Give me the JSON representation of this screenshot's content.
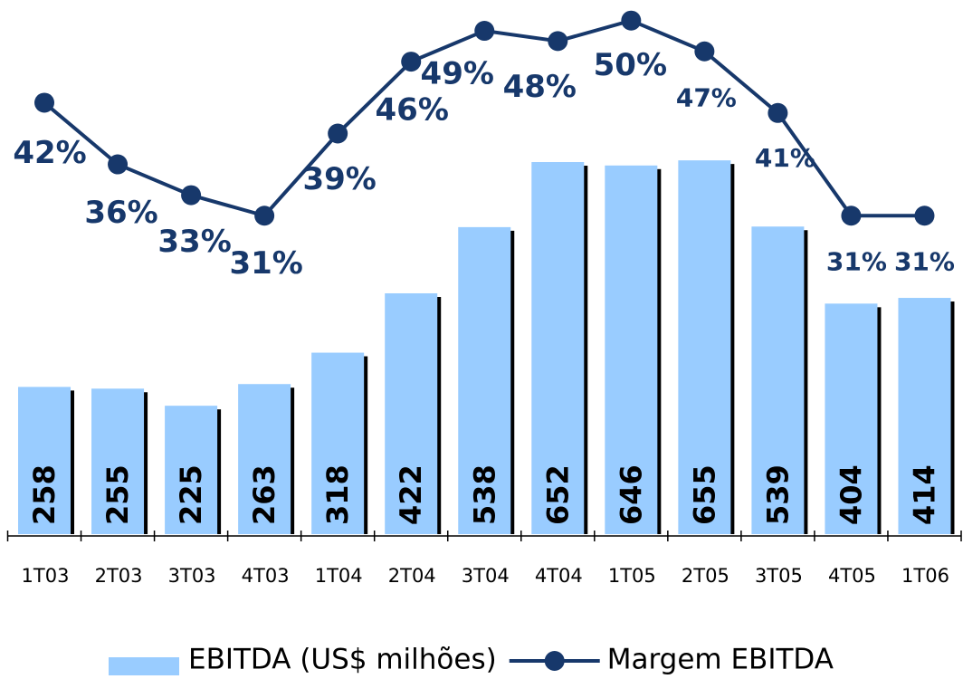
{
  "chart_data": {
    "type": "bar_line",
    "categories": [
      "1T03",
      "2T03",
      "3T03",
      "4T03",
      "1T04",
      "2T04",
      "3T04",
      "4T04",
      "1T05",
      "2T05",
      "3T05",
      "4T05",
      "1T06"
    ],
    "series": [
      {
        "name": "EBITDA (US$ milhões)",
        "color": "#99ccff",
        "type": "bar",
        "values": [
          258,
          255,
          225,
          263,
          318,
          422,
          538,
          652,
          646,
          655,
          539,
          404,
          414
        ]
      },
      {
        "name": "Margem EBITDA",
        "color": "#17386b",
        "type": "line",
        "axis": "y2",
        "values": [
          42,
          36,
          33,
          31,
          39,
          46,
          49,
          48,
          50,
          47,
          41,
          31,
          31
        ],
        "value_labels": [
          "42%",
          "36%",
          "33%",
          "31%",
          "39%",
          "46%",
          "49%",
          "48%",
          "50%",
          "47%",
          "41%",
          "31%",
          "31%"
        ]
      }
    ],
    "ylim": [
      0,
      936
    ],
    "y2lim": [
      0,
      52
    ],
    "legend": "bottom"
  }
}
